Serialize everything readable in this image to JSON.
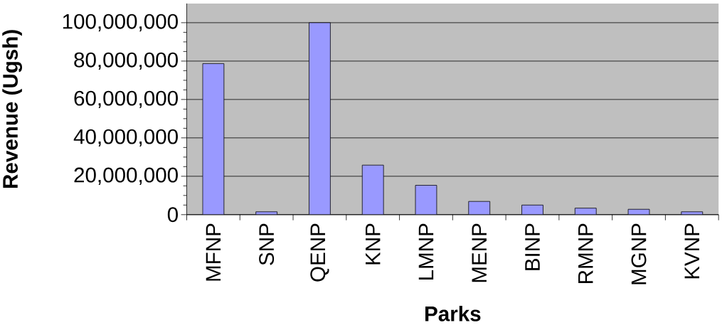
{
  "chart_data": {
    "type": "bar",
    "xlabel": "Parks",
    "ylabel": "Revenue (Ugsh)",
    "categories": [
      "MFNP",
      "SNP",
      "QENP",
      "KNP",
      "LMNP",
      "MENP",
      "BINP",
      "RMNP",
      "MGNP",
      "KVNP"
    ],
    "values": [
      78700000,
      1500000,
      100000000,
      25800000,
      15300000,
      6900000,
      5000000,
      3400000,
      2800000,
      1500000
    ],
    "color": "#9999ff",
    "ylim": [
      0,
      110000000
    ],
    "yticks": [
      0,
      {
        "value": 20000000,
        "label": "20,000,000"
      },
      {
        "value": 40000000,
        "label": "40,000,000"
      },
      {
        "value": 60000000,
        "label": "60,000,000"
      },
      {
        "value": 80000000,
        "label": "80,000,000"
      },
      {
        "value": 100000000,
        "label": "100,000,000"
      }
    ],
    "grid": "y"
  }
}
